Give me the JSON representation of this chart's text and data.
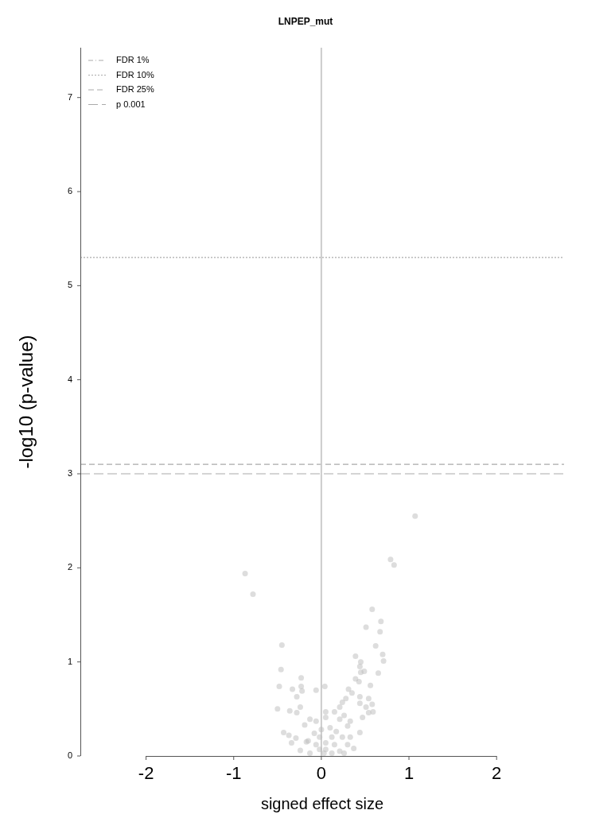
{
  "chart_data": {
    "type": "scatter",
    "title": "LNPEP_mut",
    "xlabel": "signed effect size",
    "ylabel": "-log10 (p-value)",
    "xlim": [
      -2.75,
      2.77
    ],
    "ylim": [
      0,
      7.53
    ],
    "xticks": [
      -2,
      -1,
      0,
      1,
      2
    ],
    "yticks": [
      0,
      1,
      2,
      3,
      4,
      5,
      6,
      7
    ],
    "grid": false,
    "legend": "top left",
    "marker": "circle",
    "ref_lines": [
      {
        "axis": "y",
        "value": null,
        "label": "FDR 1%",
        "color": "#aaaaaa",
        "line_style": "dashdot"
      },
      {
        "axis": "y",
        "value": 5.3,
        "label": "FDR 10%",
        "color": "#aaaaaa",
        "line_style": "dotted"
      },
      {
        "axis": "y",
        "value": 3.1,
        "label": "FDR 25%",
        "color": "#aaaaaa",
        "line_style": "dashed"
      },
      {
        "axis": "y",
        "value": 3.0,
        "label": "p 0.001",
        "color": "#aaaaaa",
        "line_style": "longdash"
      },
      {
        "axis": "x",
        "value": 0,
        "color": "#cccccc",
        "line_style": "solid"
      }
    ],
    "series": [
      {
        "color": "#bbbbbb",
        "x": [
          1.07,
          0.79,
          0.83,
          -0.87,
          -0.78,
          0.58,
          0.68,
          0.51,
          0.67,
          0.62,
          0.7,
          0.71,
          0.45,
          0.44,
          0.45,
          0.49,
          0.65,
          0.43,
          0.56,
          0.44,
          0.54,
          0.58,
          0.51,
          0.59,
          0.54,
          0.47,
          0.44,
          0.44,
          -0.45,
          -0.46,
          -0.23,
          -0.48,
          -0.23,
          -0.33,
          -0.22,
          -0.06,
          0.04,
          -0.28,
          -0.5,
          -0.36,
          -0.28,
          -0.24,
          0.05,
          -0.43,
          -0.37,
          -0.29,
          -0.34,
          -0.24,
          -0.19,
          -0.13,
          -0.06,
          -0.15,
          -0.17,
          -0.08,
          -0.02,
          0,
          -0.06,
          -0.02,
          0.05,
          0.05,
          0.12,
          0.1,
          0.15,
          0.21,
          0.24,
          0.28,
          0.31,
          0.39,
          0.39,
          0.35,
          0.21,
          0.3,
          0.17,
          0.24,
          0.33,
          0.15,
          0.21,
          0.3,
          0.37,
          -0.13,
          0.03,
          0.12,
          0.26,
          0.05,
          0.33,
          0.26
        ],
        "values": [
          2.55,
          2.09,
          2.03,
          1.94,
          1.72,
          1.56,
          1.43,
          1.37,
          1.32,
          1.17,
          1.08,
          1.01,
          1.0,
          0.95,
          0.89,
          0.9,
          0.88,
          0.79,
          0.75,
          0.63,
          0.61,
          0.55,
          0.52,
          0.47,
          0.46,
          0.41,
          0.56,
          0.25,
          1.18,
          0.92,
          0.83,
          0.74,
          0.74,
          0.71,
          0.69,
          0.7,
          0.74,
          0.63,
          0.5,
          0.48,
          0.46,
          0.52,
          0.47,
          0.25,
          0.22,
          0.19,
          0.14,
          0.06,
          0.33,
          0.39,
          0.37,
          0.16,
          0.15,
          0.24,
          0.2,
          0.28,
          0.12,
          0.07,
          0.14,
          0.07,
          0.2,
          0.3,
          0.47,
          0.52,
          0.57,
          0.61,
          0.71,
          1.06,
          0.82,
          0.67,
          0.39,
          0.32,
          0.26,
          0.2,
          0.2,
          0.12,
          0.05,
          0.12,
          0.08,
          0.03,
          0.03,
          0.03,
          0.03,
          0.41,
          0.37,
          0.43
        ]
      }
    ]
  }
}
